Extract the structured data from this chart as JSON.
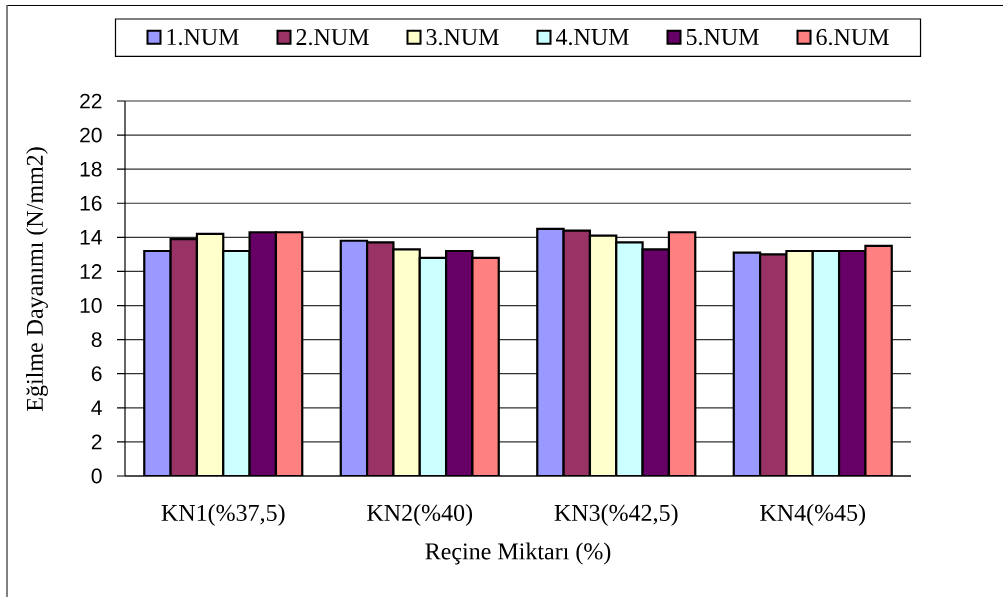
{
  "chart_data": {
    "type": "bar",
    "xlabel": "Reçine Miktarı (%)",
    "ylabel": "Eğilme Dayanımı (N/mm2)",
    "categories": [
      "KN1(%37,5)",
      "KN2(%40)",
      "KN3(%42,5)",
      "KN4(%45)"
    ],
    "series": [
      {
        "name": "1.NUM",
        "color": "#9999ff",
        "values": [
          13.2,
          13.8,
          14.5,
          13.1
        ]
      },
      {
        "name": "2.NUM",
        "color": "#993366",
        "values": [
          13.9,
          13.7,
          14.4,
          13.0
        ]
      },
      {
        "name": "3.NUM",
        "color": "#ffffcc",
        "values": [
          14.2,
          13.3,
          14.1,
          13.2
        ]
      },
      {
        "name": "4.NUM",
        "color": "#ccffff",
        "values": [
          13.2,
          12.8,
          13.7,
          13.2
        ]
      },
      {
        "name": "5.NUM",
        "color": "#660066",
        "values": [
          14.3,
          13.2,
          13.3,
          13.2
        ]
      },
      {
        "name": "6.NUM",
        "color": "#ff8080",
        "values": [
          14.3,
          12.8,
          14.3,
          13.5
        ]
      }
    ],
    "ylim": [
      0,
      22
    ],
    "yticks": [
      0,
      2,
      4,
      6,
      8,
      10,
      12,
      14,
      16,
      18,
      20,
      22
    ],
    "grid": "y",
    "legend": "top"
  }
}
